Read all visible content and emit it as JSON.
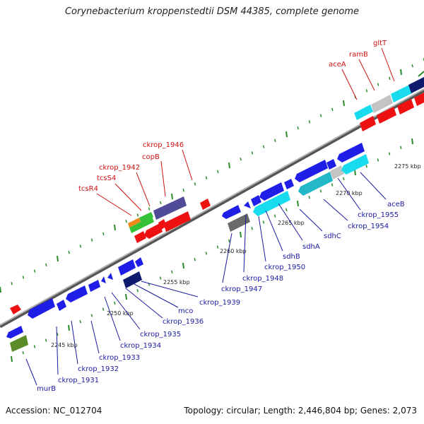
{
  "title": "Corynebacterium kroppenstedtii DSM 44385, complete genome",
  "accession": "Accession: NC_012704",
  "summary": "Topology: circular; Length: 2,446,804 bp; Genes: 2,073",
  "colors": {
    "blue": "#1e1ee6",
    "red": "#ee1111",
    "cyan": "#18dcee",
    "teal": "#22b8c8",
    "navy": "#0d1a6e",
    "purple": "#504c98",
    "gray_dark": "#6a6a6a",
    "gray_light": "#c4c4c4",
    "olive": "#5c8c28",
    "green": "#36c236",
    "orange": "#f08a1a",
    "tick": "#2a8a2a",
    "label_blue": "#1a1aa0",
    "label_red": "#cc1111"
  },
  "ticks": [
    {
      "label": "2245 kbp"
    },
    {
      "label": "2250 kbp"
    },
    {
      "label": "2255 kbp"
    },
    {
      "label": "2260 kbp"
    },
    {
      "label": "2265 kbp"
    },
    {
      "label": "2270 kbp"
    },
    {
      "label": "2275 kbp"
    }
  ],
  "genes_lower": [
    "murB",
    "ckrop_1931",
    "ckrop_1932",
    "ckrop_1933",
    "ckrop_1934",
    "ckrop_1935",
    "ckrop_1936",
    "mco",
    "ckrop_1939",
    "ckrop_1947",
    "ckrop_1948",
    "ckrop_1950",
    "sdhB",
    "sdhA",
    "sdhC",
    "ckrop_1954",
    "ckrop_1955",
    "aceB"
  ],
  "genes_upper": [
    "tcsR4",
    "tcsS4",
    "ckrop_1942",
    "copB",
    "ckrop_1946",
    "aceA",
    "ramB",
    "gltT"
  ]
}
